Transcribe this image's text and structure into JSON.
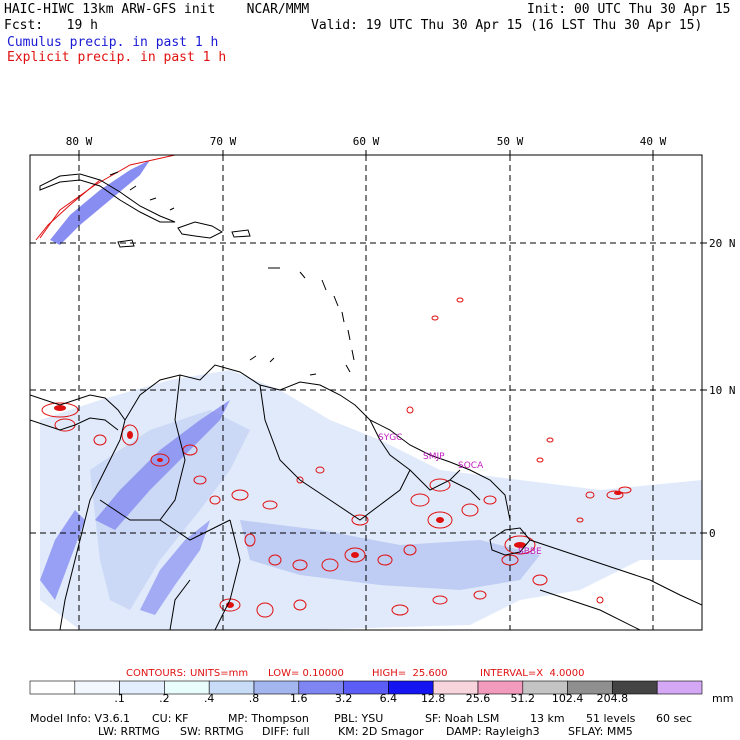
{
  "header": {
    "model_title": "HAIC-HIWC 13km ARW-GFS init    NCAR/MMM",
    "init": "Init: 00 UTC Thu 30 Apr 15",
    "fcst": "Fcst:   19 h",
    "valid": "Valid: 19 UTC Thu 30 Apr 15 (16 LST Thu 30 Apr 15)",
    "legend_cumulus": "Cumulus precip. in past 1 h",
    "legend_explicit": "Explicit precip. in past 1 h"
  },
  "map": {
    "lon_labels": [
      "80 W",
      "70 W",
      "60 W",
      "50 W",
      "40 W"
    ],
    "lat_labels": [
      "20 N",
      "10 N",
      "0"
    ],
    "stations": [
      "SYGC",
      "SMJP",
      "SOCA",
      "SBBE"
    ]
  },
  "contours": {
    "label": "CONTOURS:",
    "units": "UNITS=mm",
    "low": "LOW= 0.10000",
    "high": "HIGH=  25.600",
    "interval": "INTERVAL=X  4.0000"
  },
  "colorbar": {
    "labels": [
      ".1",
      ".2",
      ".4",
      ".8",
      "1.6",
      "3.2",
      "6.4",
      "12.8",
      "25.6",
      "51.2",
      "102.4",
      "204.8"
    ],
    "unit": "mm",
    "colors": [
      "#ffffff",
      "#f3f8ff",
      "#e3eeff",
      "#eafdfd",
      "#c9dcf7",
      "#a4b6f0",
      "#7f86f3",
      "#5c5cf6",
      "#1515f2",
      "#f8d4dc",
      "#f29bbd",
      "#c4c4c4",
      "#8f8f8f",
      "#444444",
      "#d4a8f5"
    ]
  },
  "model_info": {
    "line1": [
      "Model Info: V3.6.1",
      "CU: KF",
      "MP: Thompson",
      "PBL: YSU",
      "SF: Noah LSM",
      "13 km",
      "51 levels",
      "60 sec"
    ],
    "line2": [
      "LW: RRTMG",
      "SW: RRTMG",
      "DIFF: full",
      "KM: 2D Smagor",
      "DAMP: Rayleigh3",
      "SFLAY: MM5"
    ]
  }
}
